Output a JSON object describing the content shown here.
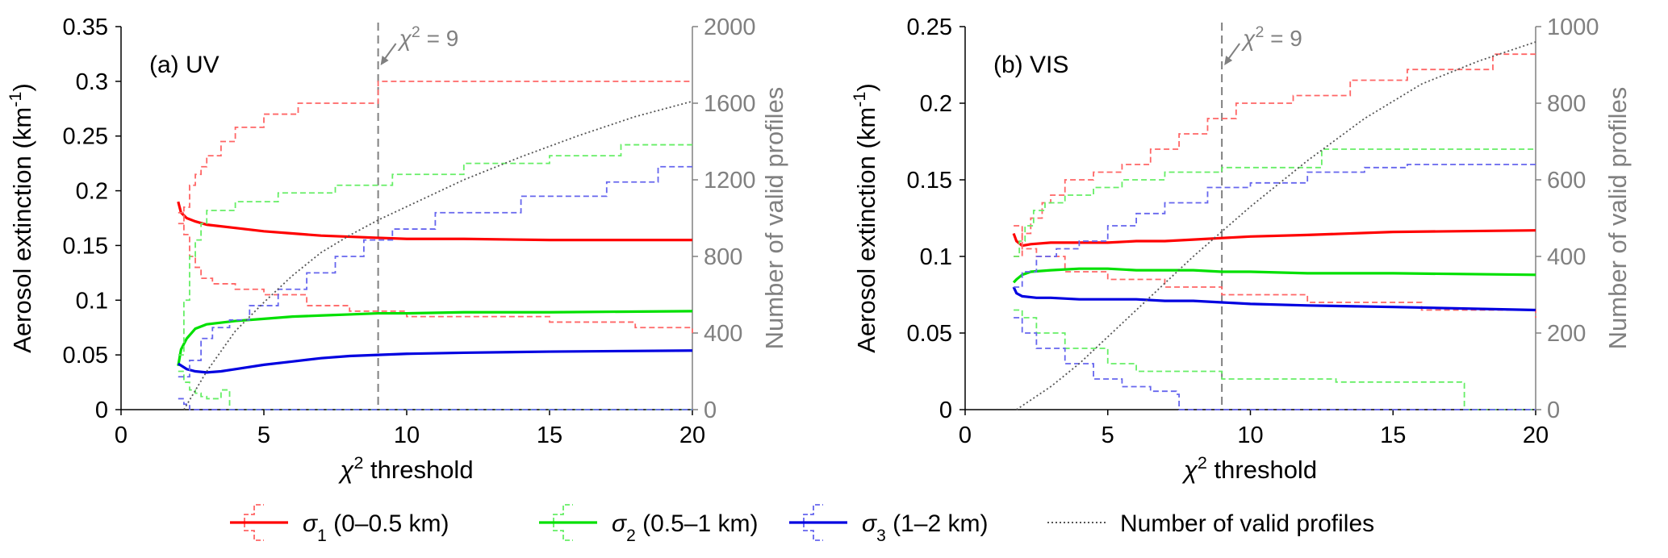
{
  "chart_data": [
    {
      "type": "line",
      "panel_label": "(a) UV",
      "xlabel_sym": "χ",
      "xlabel_sup": "2",
      "xlabel_rest": " threshold",
      "ylabel_main": "Aerosol extinction (km",
      "ylabel_sup": "-1",
      "ylabel_close": ")",
      "y2label": "Number of valid profiles",
      "xlim": [
        0,
        20
      ],
      "ylim": [
        0,
        0.35
      ],
      "y2lim": [
        0,
        2000
      ],
      "xticks": [
        "0",
        "5",
        "10",
        "15",
        "20"
      ],
      "xtick_values": [
        0,
        5,
        10,
        15,
        20
      ],
      "yticks": [
        "0",
        "0.05",
        "0.1",
        "0.15",
        "0.2",
        "0.25",
        "0.3",
        "0.35"
      ],
      "ytick_values": [
        0,
        0.05,
        0.1,
        0.15,
        0.2,
        0.25,
        0.3,
        0.35
      ],
      "y2ticks": [
        "0",
        "400",
        "800",
        "1200",
        "1600",
        "2000"
      ],
      "y2tick_values": [
        0,
        400,
        800,
        1200,
        1600,
        2000
      ],
      "annotation": {
        "text_sym": "χ",
        "text_sup": "2",
        "text_rest": " = 9",
        "x": 9
      },
      "series": [
        {
          "name": "σ1 mean",
          "color": "#ff0000",
          "x": [
            2,
            2.1,
            2.3,
            2.6,
            3,
            4,
            5,
            6,
            7,
            8,
            9,
            10,
            12,
            15,
            20
          ],
          "y": [
            0.19,
            0.18,
            0.175,
            0.172,
            0.169,
            0.166,
            0.163,
            0.161,
            0.159,
            0.158,
            0.157,
            0.156,
            0.156,
            0.155,
            0.155
          ]
        },
        {
          "name": "σ1 upper",
          "color": "#ff6666",
          "dashed": true,
          "step": true,
          "x": [
            2,
            2.2,
            2.4,
            2.6,
            2.8,
            3.0,
            3.5,
            4.0,
            5.0,
            6.2,
            9.0,
            20
          ],
          "y": [
            0.17,
            0.185,
            0.205,
            0.215,
            0.222,
            0.232,
            0.245,
            0.258,
            0.27,
            0.28,
            0.3,
            0.3
          ]
        },
        {
          "name": "σ1 lower",
          "color": "#ff6666",
          "dashed": true,
          "step": true,
          "x": [
            2,
            2.2,
            2.4,
            2.6,
            2.8,
            3.2,
            4.0,
            5.0,
            6.5,
            8.0,
            10.0,
            15.0,
            18.0,
            20
          ],
          "y": [
            0.18,
            0.16,
            0.14,
            0.13,
            0.12,
            0.115,
            0.11,
            0.105,
            0.095,
            0.09,
            0.085,
            0.08,
            0.075,
            0.07
          ]
        },
        {
          "name": "σ2 mean",
          "color": "#00e000",
          "x": [
            2,
            2.1,
            2.3,
            2.6,
            3,
            4,
            5,
            6,
            7,
            8,
            9,
            10,
            12,
            15,
            20
          ],
          "y": [
            0.04,
            0.055,
            0.065,
            0.074,
            0.078,
            0.081,
            0.083,
            0.085,
            0.086,
            0.087,
            0.088,
            0.088,
            0.089,
            0.089,
            0.09
          ]
        },
        {
          "name": "σ2 upper",
          "color": "#66ee66",
          "dashed": true,
          "step": true,
          "x": [
            2,
            2.2,
            2.4,
            2.6,
            2.8,
            3.0,
            4.0,
            5.5,
            7.5,
            9.5,
            12.0,
            15.0,
            17.5,
            20
          ],
          "y": [
            0.05,
            0.1,
            0.14,
            0.155,
            0.17,
            0.182,
            0.19,
            0.198,
            0.205,
            0.215,
            0.225,
            0.232,
            0.242,
            0.242
          ]
        },
        {
          "name": "σ2 lower",
          "color": "#66ee66",
          "dashed": true,
          "step": true,
          "x": [
            2,
            2.2,
            2.4,
            2.6,
            2.8,
            3.0,
            3.5,
            3.8,
            20
          ],
          "y": [
            0.035,
            0.025,
            0.018,
            0.015,
            0.012,
            0.01,
            0.018,
            0.0,
            0.0
          ]
        },
        {
          "name": "σ3 mean",
          "color": "#0000e0",
          "x": [
            2,
            2.3,
            2.6,
            3,
            3.5,
            4,
            5,
            6,
            7,
            8,
            9,
            10,
            12,
            15,
            20
          ],
          "y": [
            0.042,
            0.037,
            0.035,
            0.034,
            0.035,
            0.037,
            0.041,
            0.044,
            0.047,
            0.049,
            0.05,
            0.051,
            0.052,
            0.053,
            0.054
          ]
        },
        {
          "name": "σ3 upper",
          "color": "#6666ee",
          "dashed": true,
          "step": true,
          "x": [
            2,
            2.4,
            2.8,
            3.2,
            3.8,
            4.5,
            5.5,
            6.5,
            7.5,
            8.5,
            9.5,
            11.0,
            14.0,
            17.0,
            18.8,
            20
          ],
          "y": [
            0.03,
            0.045,
            0.065,
            0.075,
            0.082,
            0.095,
            0.11,
            0.125,
            0.14,
            0.155,
            0.165,
            0.18,
            0.195,
            0.208,
            0.222,
            0.222
          ]
        },
        {
          "name": "σ3 lower",
          "color": "#6666ee",
          "dashed": true,
          "step": true,
          "x": [
            2,
            2.2,
            2.4,
            20
          ],
          "y": [
            0.01,
            0.005,
            0.0,
            0.0
          ]
        },
        {
          "name": "Number of valid profiles",
          "color": "#555555",
          "dotted": true,
          "axis": "y2",
          "x": [
            2.2,
            3,
            4,
            5,
            6,
            7,
            8,
            9,
            10,
            12,
            14,
            16,
            18,
            20
          ],
          "y": [
            0,
            200,
            410,
            560,
            700,
            820,
            910,
            990,
            1060,
            1200,
            1320,
            1430,
            1530,
            1610
          ]
        }
      ]
    },
    {
      "type": "line",
      "panel_label": "(b) VIS",
      "xlabel_sym": "χ",
      "xlabel_sup": "2",
      "xlabel_rest": " threshold",
      "ylabel_main": "Aerosol extinction (km",
      "ylabel_sup": "-1",
      "ylabel_close": ")",
      "y2label": "Number of valid profiles",
      "xlim": [
        0,
        20
      ],
      "ylim": [
        0,
        0.25
      ],
      "y2lim": [
        0,
        1000
      ],
      "xticks": [
        "0",
        "5",
        "10",
        "15",
        "20"
      ],
      "xtick_values": [
        0,
        5,
        10,
        15,
        20
      ],
      "yticks": [
        "0",
        "0.05",
        "0.1",
        "0.15",
        "0.2",
        "0.25"
      ],
      "ytick_values": [
        0,
        0.05,
        0.1,
        0.15,
        0.2,
        0.25
      ],
      "y2ticks": [
        "0",
        "200",
        "400",
        "600",
        "800",
        "1000"
      ],
      "y2tick_values": [
        0,
        200,
        400,
        600,
        800,
        1000
      ],
      "annotation": {
        "text_sym": "χ",
        "text_sup": "2",
        "text_rest": " = 9",
        "x": 9
      },
      "series": [
        {
          "name": "σ1 mean",
          "color": "#ff0000",
          "x": [
            1.7,
            1.8,
            2.0,
            2.3,
            3,
            4,
            5,
            6,
            7,
            8,
            9,
            10,
            12,
            15,
            20
          ],
          "y": [
            0.115,
            0.11,
            0.107,
            0.108,
            0.109,
            0.109,
            0.109,
            0.11,
            0.11,
            0.111,
            0.112,
            0.113,
            0.114,
            0.116,
            0.117
          ]
        },
        {
          "name": "σ1 upper",
          "color": "#ff6666",
          "dashed": true,
          "step": true,
          "x": [
            1.7,
            2.0,
            2.3,
            2.7,
            3.0,
            3.5,
            4.5,
            5.5,
            6.5,
            7.5,
            8.5,
            9.5,
            11.5,
            13.5,
            15.5,
            18.5,
            20
          ],
          "y": [
            0.1,
            0.115,
            0.125,
            0.135,
            0.14,
            0.15,
            0.155,
            0.16,
            0.17,
            0.18,
            0.19,
            0.2,
            0.205,
            0.215,
            0.222,
            0.232,
            0.232
          ]
        },
        {
          "name": "σ1 lower",
          "color": "#ff6666",
          "dashed": true,
          "step": true,
          "x": [
            1.7,
            2.0,
            2.5,
            3.5,
            5.0,
            7.0,
            9.0,
            12.0,
            16.0,
            20
          ],
          "y": [
            0.12,
            0.105,
            0.1,
            0.09,
            0.085,
            0.08,
            0.075,
            0.07,
            0.065,
            0.06
          ]
        },
        {
          "name": "σ2 mean",
          "color": "#00e000",
          "x": [
            1.7,
            1.8,
            2.0,
            2.3,
            3,
            4,
            5,
            6,
            7,
            8,
            9,
            10,
            12,
            15,
            20
          ],
          "y": [
            0.083,
            0.085,
            0.088,
            0.09,
            0.091,
            0.092,
            0.092,
            0.091,
            0.091,
            0.091,
            0.09,
            0.09,
            0.089,
            0.089,
            0.088
          ]
        },
        {
          "name": "σ2 upper",
          "color": "#66ee66",
          "dashed": true,
          "step": true,
          "x": [
            1.7,
            1.9,
            2.1,
            2.4,
            2.8,
            3.5,
            4.5,
            5.5,
            7.0,
            9.0,
            12.5,
            20
          ],
          "y": [
            0.1,
            0.11,
            0.12,
            0.13,
            0.135,
            0.14,
            0.145,
            0.15,
            0.155,
            0.158,
            0.17,
            0.17
          ]
        },
        {
          "name": "σ2 lower",
          "color": "#66ee66",
          "dashed": true,
          "step": true,
          "x": [
            1.7,
            2.0,
            2.5,
            3.5,
            5.0,
            6.0,
            9.0,
            13.0,
            17.4,
            17.5,
            20
          ],
          "y": [
            0.065,
            0.06,
            0.05,
            0.04,
            0.03,
            0.025,
            0.02,
            0.018,
            0.017,
            0.0,
            0.0
          ]
        },
        {
          "name": "σ3 mean",
          "color": "#0000e0",
          "x": [
            1.7,
            1.8,
            2.0,
            2.5,
            3,
            4,
            5,
            6,
            7,
            8,
            9,
            10,
            12,
            15,
            20
          ],
          "y": [
            0.08,
            0.076,
            0.074,
            0.073,
            0.073,
            0.072,
            0.072,
            0.072,
            0.071,
            0.071,
            0.07,
            0.069,
            0.068,
            0.067,
            0.065
          ]
        },
        {
          "name": "σ3 upper",
          "color": "#6666ee",
          "dashed": true,
          "step": true,
          "x": [
            1.7,
            2.0,
            2.5,
            3.2,
            4.0,
            5.0,
            6.0,
            7.0,
            8.5,
            10.0,
            12.0,
            14.0,
            15.5,
            20
          ],
          "y": [
            0.08,
            0.09,
            0.1,
            0.105,
            0.11,
            0.12,
            0.128,
            0.135,
            0.145,
            0.148,
            0.155,
            0.158,
            0.16,
            0.16
          ]
        },
        {
          "name": "σ3 lower",
          "color": "#6666ee",
          "dashed": true,
          "step": true,
          "x": [
            1.7,
            2.0,
            2.5,
            3.5,
            4.5,
            5.5,
            6.5,
            7.4,
            7.5,
            20
          ],
          "y": [
            0.06,
            0.05,
            0.04,
            0.03,
            0.02,
            0.015,
            0.012,
            0.01,
            0.0,
            0.0
          ]
        },
        {
          "name": "Number of valid profiles",
          "color": "#555555",
          "dotted": true,
          "axis": "y2",
          "x": [
            1.8,
            3,
            4,
            5,
            6,
            7,
            8,
            9,
            10,
            12,
            14,
            16,
            18,
            20
          ],
          "y": [
            0,
            60,
            120,
            190,
            260,
            330,
            400,
            465,
            530,
            650,
            760,
            850,
            910,
            960
          ]
        }
      ]
    }
  ],
  "legend": [
    {
      "sym": "σ",
      "sub": "1",
      "rest": " (0–0.5 km)",
      "color": "#ff0000",
      "band": "#ff6666"
    },
    {
      "sym": "σ",
      "sub": "2",
      "rest": " (0.5–1 km)",
      "color": "#00e000",
      "band": "#66ee66"
    },
    {
      "sym": "σ",
      "sub": "3",
      "rest": " (1–2 km)",
      "color": "#0000e0",
      "band": "#6666ee"
    },
    {
      "sym": "",
      "sub": "",
      "rest": "Number of valid profiles",
      "color": "#555555",
      "dotted": true
    }
  ]
}
